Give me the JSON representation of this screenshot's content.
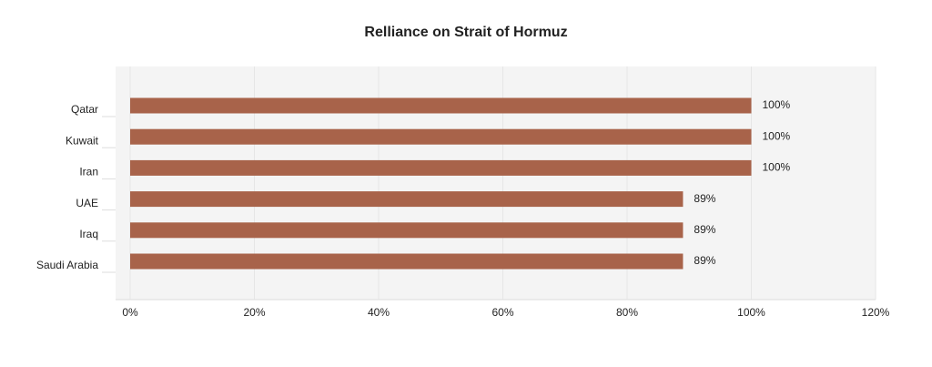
{
  "chart_data": {
    "type": "bar",
    "orientation": "horizontal",
    "title": "Relliance on Strait of Hormuz",
    "categories": [
      "Qatar",
      "Kuwait",
      "Iran",
      "UAE",
      "Iraq",
      "Saudi Arabia"
    ],
    "values": [
      100,
      100,
      100,
      89,
      89,
      89
    ],
    "value_labels": [
      "100%",
      "100%",
      "100%",
      "89%",
      "89%",
      "89%"
    ],
    "color": "#a8634a",
    "xlim": [
      0,
      120
    ],
    "xticks": [
      {
        "value": 0,
        "label": "0%"
      },
      {
        "value": 20,
        "label": "20%"
      },
      {
        "value": 40,
        "label": "40%"
      },
      {
        "value": 60,
        "label": "60%"
      },
      {
        "value": 80,
        "label": "80%"
      },
      {
        "value": 100,
        "label": "100%"
      },
      {
        "value": 120,
        "label": "120%"
      }
    ],
    "grid": true
  }
}
